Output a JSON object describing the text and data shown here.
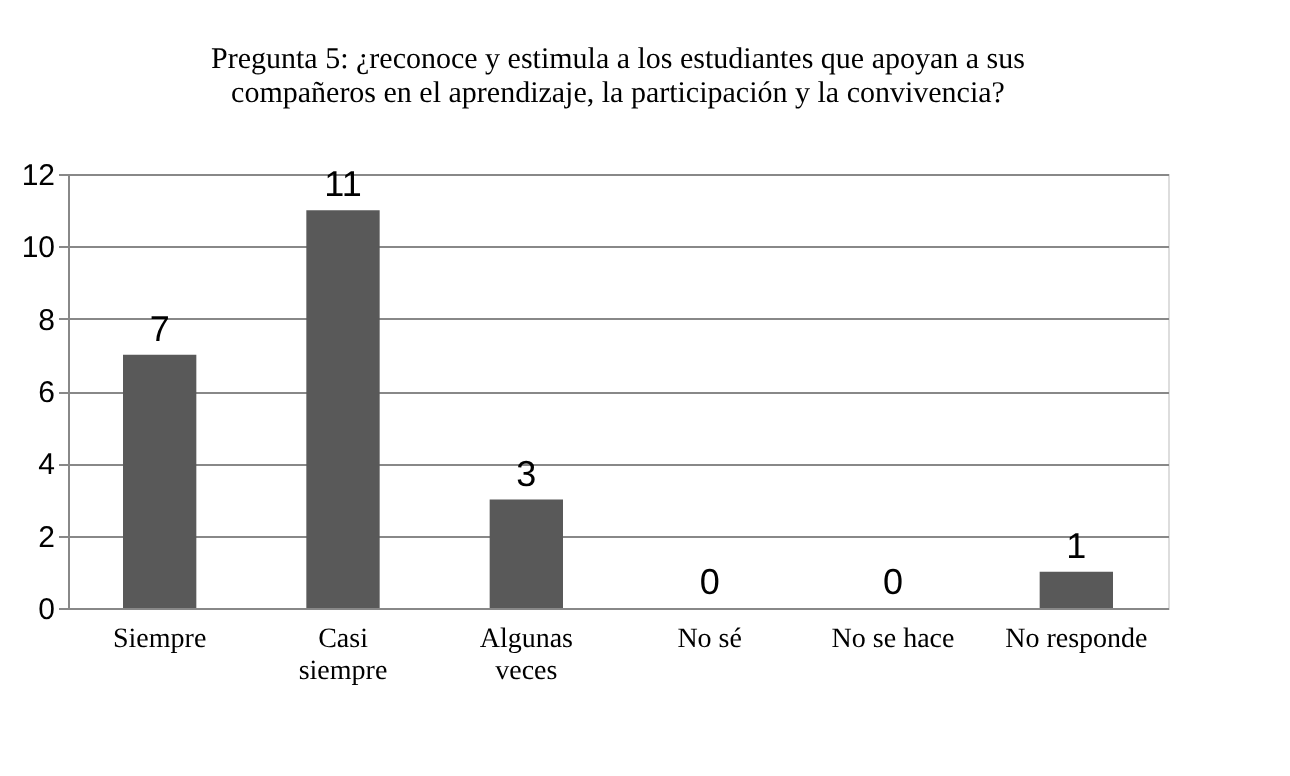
{
  "chart_data": {
    "type": "bar",
    "title": "Pregunta 5: ¿reconoce y estimula a los estudiantes que apoyan a sus compañeros en el aprendizaje, la participación y la convivencia?",
    "categories": [
      "Siempre",
      "Casi siempre",
      "Algunas veces",
      "No sé",
      "No se hace",
      "No responde"
    ],
    "values": [
      7,
      11,
      3,
      0,
      0,
      1
    ],
    "color": "#595959",
    "ylim": [
      0,
      12
    ],
    "yticks": [
      0,
      2,
      4,
      6,
      8,
      10,
      12
    ],
    "grid": "y",
    "data_labels": true
  }
}
